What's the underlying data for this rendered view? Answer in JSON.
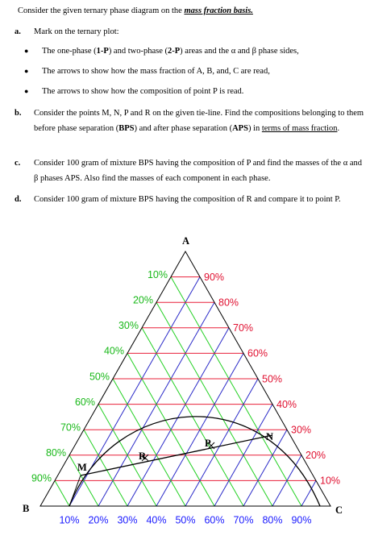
{
  "header": {
    "parts": [
      "Consider the given ternary phase diagram on the ",
      "mass fraction basis."
    ]
  },
  "items": [
    {
      "marker": "a.",
      "text": "Mark on the ternary plot:",
      "bullets": [
        {
          "parts": [
            "The one-phase (",
            "1-P",
            ") and two-phase (",
            "2-P",
            ") areas and the α and β phase sides,"
          ]
        },
        {
          "parts": [
            "The arrows to show how the mass fraction of A, B, and, C are read,"
          ]
        },
        {
          "parts": [
            "The arrows to show how the composition of point P is read."
          ]
        }
      ]
    },
    {
      "marker": "b.",
      "parts": [
        "Consider the points M, N, P and R on the given tie-line. Find the compositions belonging to them before phase separation (",
        "BPS",
        ") and after phase separation (",
        "APS",
        ") in ",
        "terms of mass fraction",
        "."
      ]
    },
    {
      "marker": "c.",
      "parts": [
        "Consider 100 gram of mixture BPS having the composition of P and find the masses of the α and β phases APS. Also find the masses of each component in each phase."
      ]
    },
    {
      "marker": "d.",
      "parts": [
        "Consider 100 gram of mixture BPS having the composition of R and compare it to point P."
      ]
    }
  ],
  "diagram": {
    "vertices": [
      "A",
      "B",
      "C"
    ],
    "left_labels": [
      "10%",
      "20%",
      "30%",
      "40%",
      "50%",
      "60%",
      "70%",
      "80%",
      "90%"
    ],
    "right_labels": [
      "90%",
      "80%",
      "70%",
      "60%",
      "50%",
      "40%",
      "30%",
      "20%",
      "10%"
    ],
    "bottom_labels": [
      "10%",
      "20%",
      "30%",
      "40%",
      "50%",
      "60%",
      "70%",
      "80%",
      "90%"
    ],
    "points": [
      "M",
      "N",
      "P",
      "R"
    ]
  }
}
